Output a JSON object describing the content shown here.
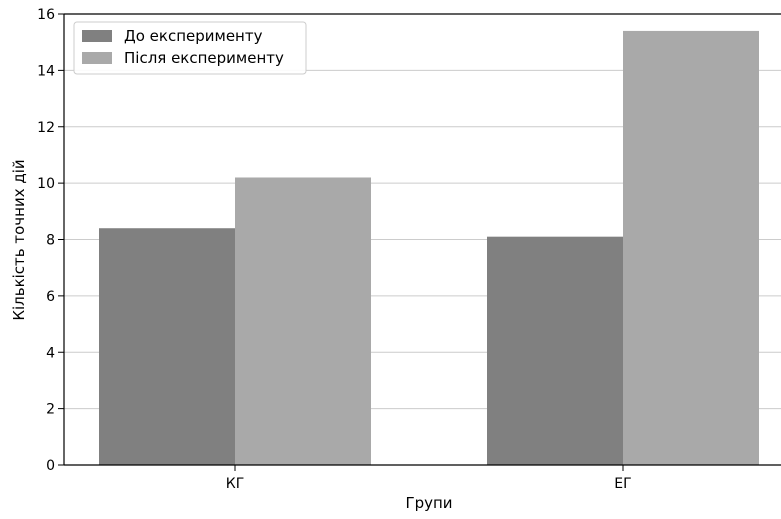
{
  "chart_data": {
    "type": "bar",
    "title": "",
    "xlabel": "Групи",
    "ylabel": "Кількість точних дій",
    "categories": [
      "КГ",
      "ЕГ"
    ],
    "series": [
      {
        "name": "До експерименту",
        "values": [
          8.4,
          8.1
        ],
        "color": "#808080"
      },
      {
        "name": "Після експерименту",
        "values": [
          10.2,
          15.4
        ],
        "color": "#a9a9a9"
      }
    ],
    "ylim": [
      0,
      16
    ],
    "yticks": [
      "0",
      "2",
      "4",
      "6",
      "8",
      "10",
      "12",
      "14",
      "16"
    ],
    "grid": "horizontal",
    "legend_position": "top-left"
  }
}
